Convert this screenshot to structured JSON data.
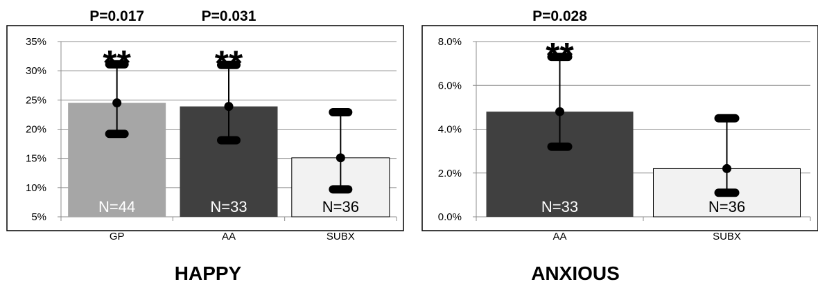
{
  "chart_data": [
    {
      "type": "bar",
      "title": "HAPPY",
      "categories": [
        "GP",
        "AA",
        "SUBX"
      ],
      "values": [
        24.5,
        23.9,
        15.1
      ],
      "error_low": [
        19.2,
        18.1,
        9.7
      ],
      "error_high": [
        31.1,
        31.0,
        22.9
      ],
      "bar_labels": [
        "N=44",
        "N=33",
        "N=36"
      ],
      "bar_colors": [
        "#a6a6a6",
        "#404040",
        "#f2f2f2"
      ],
      "bar_label_colors": [
        "#ffffff",
        "#ffffff",
        "#000000"
      ],
      "significance": [
        "**",
        "**",
        ""
      ],
      "p_values": [
        "P=0.017",
        "P=0.031",
        ""
      ],
      "yticks": [
        "5%",
        "10%",
        "15%",
        "20%",
        "25%",
        "30%",
        "35%"
      ],
      "ylim": [
        5,
        35
      ],
      "xlabel": "",
      "ylabel": "",
      "grid": true
    },
    {
      "type": "bar",
      "title": "ANXIOUS",
      "categories": [
        "AA",
        "SUBX"
      ],
      "values": [
        4.8,
        2.2
      ],
      "error_low": [
        3.2,
        1.1
      ],
      "error_high": [
        7.3,
        4.5
      ],
      "bar_labels": [
        "N=33",
        "N=36"
      ],
      "bar_colors": [
        "#404040",
        "#f2f2f2"
      ],
      "bar_label_colors": [
        "#ffffff",
        "#000000"
      ],
      "significance": [
        "**",
        ""
      ],
      "p_values": [
        "P=0.028",
        ""
      ],
      "yticks": [
        "0.0%",
        "2.0%",
        "4.0%",
        "6.0%",
        "8.0%"
      ],
      "ylim": [
        0,
        8
      ],
      "xlabel": "",
      "ylabel": "",
      "grid": true
    }
  ]
}
